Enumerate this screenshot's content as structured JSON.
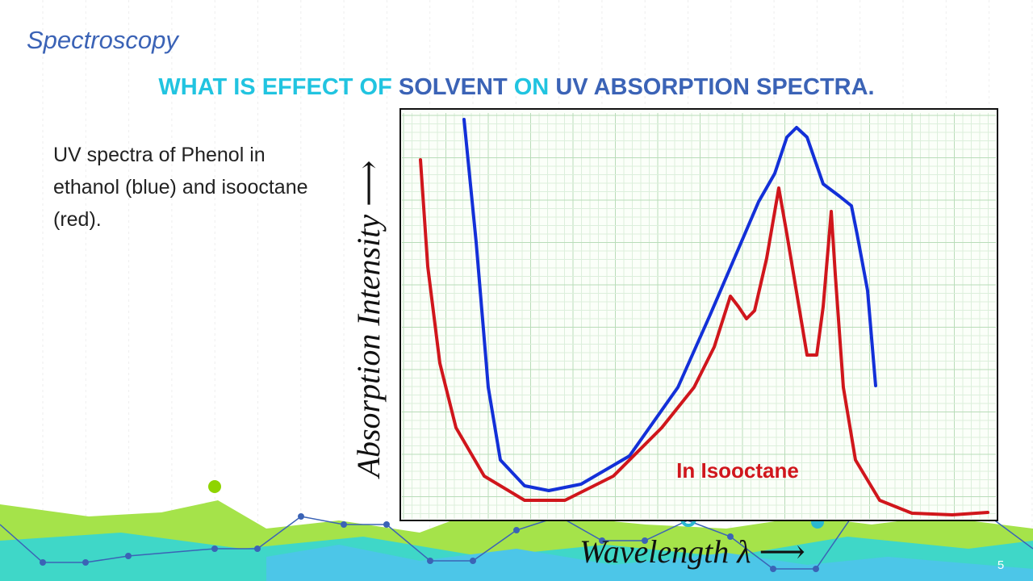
{
  "header": {
    "section": "Spectroscopy",
    "title": [
      "WHAT IS EFFECT OF",
      "SOLVENT",
      "ON",
      "UV ABSORPTION SPECTRA."
    ]
  },
  "body": {
    "text": "UV spectra of Phenol in ethanol (blue) and isooctane (red)."
  },
  "figure": {
    "y_label": "Absorption Intensity ⟶",
    "x_label": "Wavelength λ ⟶",
    "annotation": "In Isooctane"
  },
  "footer": {
    "page": "5"
  }
}
